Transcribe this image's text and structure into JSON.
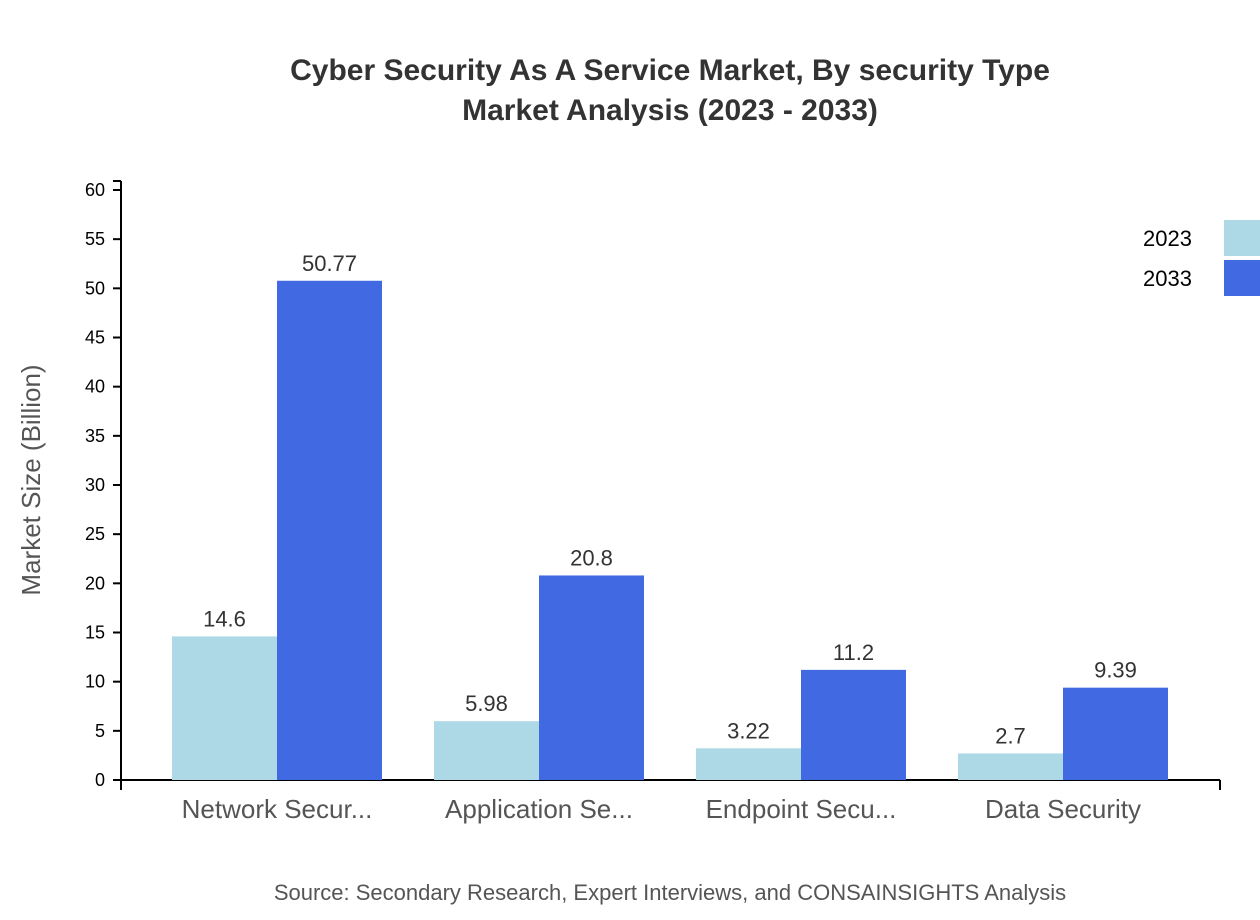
{
  "chart_data": {
    "type": "bar",
    "title": "Cyber Security As A Service Market, By security Type",
    "subtitle": "Market Analysis (2023 - 2033)",
    "ylabel": "Market Size (Billion)",
    "xlabel": "",
    "ylim": [
      0,
      60
    ],
    "yticks": [
      0,
      5,
      10,
      15,
      20,
      25,
      30,
      35,
      40,
      45,
      50,
      55,
      60
    ],
    "categories": [
      "Network Secur...",
      "Application Se...",
      "Endpoint Secu...",
      "Data Security"
    ],
    "series": [
      {
        "name": "2023",
        "color": "#add8e6",
        "values": [
          14.6,
          5.98,
          3.22,
          2.7
        ]
      },
      {
        "name": "2033",
        "color": "#4169e1",
        "values": [
          50.77,
          20.8,
          11.2,
          9.39
        ]
      }
    ],
    "legend_position": "top-right",
    "grid": false,
    "source": "Source: Secondary Research, Expert Interviews, and CONSAINSIGHTS Analysis"
  }
}
